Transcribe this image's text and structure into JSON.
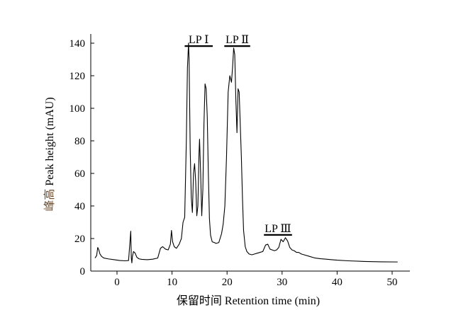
{
  "chart_data": {
    "type": "line",
    "xlabel": "保留时间 Retention time (min)",
    "ylabel": "峰高 Peak height (mAU)",
    "xlim": [
      -4,
      51.5
    ],
    "ylim": [
      0,
      142
    ],
    "x_ticks": [
      0,
      10,
      20,
      30,
      40,
      50
    ],
    "y_ticks": [
      0,
      20,
      40,
      60,
      80,
      100,
      120,
      140
    ],
    "grid": false,
    "legend": "none",
    "line_color": "#000000",
    "annotations": [
      {
        "label": "LP Ⅰ",
        "x_start": 12.3,
        "x_end": 17.4,
        "y": 143
      },
      {
        "label": "LP Ⅱ",
        "x_start": 19.5,
        "x_end": 24.2,
        "y": 143
      },
      {
        "label": "LP Ⅲ",
        "x_start": 26.7,
        "x_end": 31.8,
        "y": 27
      }
    ],
    "series": [
      {
        "x": [
          -4.0,
          -3.7,
          -3.5,
          -3.3,
          -3.1,
          -2.8,
          -2.4,
          -1.6,
          -0.5,
          0.5,
          1.5,
          2.1,
          2.5,
          2.6,
          2.7,
          2.8,
          3.0,
          3.3,
          3.6,
          4.0,
          4.5,
          5.5,
          6.5,
          7.4,
          7.9,
          8.3,
          8.8,
          9.3,
          9.7,
          9.9,
          10.1,
          10.4,
          10.8,
          11.3,
          11.7,
          12.0,
          12.3,
          12.6,
          12.8,
          13.0,
          13.1,
          13.3,
          13.5,
          13.7,
          13.9,
          14.1,
          14.3,
          14.5,
          14.7,
          14.9,
          15.0,
          15.2,
          15.4,
          15.6,
          15.8,
          16.0,
          16.2,
          16.4,
          16.6,
          16.8,
          17.0,
          17.3,
          17.7,
          18.0,
          18.5,
          19.0,
          19.3,
          19.6,
          19.9,
          20.2,
          20.5,
          20.8,
          21.0,
          21.2,
          21.4,
          21.6,
          21.8,
          22.0,
          22.2,
          22.4,
          22.6,
          22.8,
          23.0,
          23.3,
          23.6,
          24.0,
          24.5,
          25.0,
          25.5,
          26.0,
          26.5,
          27.0,
          27.4,
          27.8,
          28.2,
          28.6,
          29.0,
          29.4,
          29.8,
          30.2,
          30.6,
          31.0,
          31.4,
          31.8,
          32.2,
          32.6,
          33.0,
          33.5,
          34.0,
          35.0,
          36.0,
          37.0,
          38.0,
          39.0,
          40.0,
          42.0,
          45.0,
          48.0,
          51.0
        ],
        "y": [
          8.0,
          9.5,
          14.5,
          13.0,
          10.5,
          9.0,
          8.0,
          7.5,
          7.0,
          6.5,
          6.3,
          6.5,
          24.5,
          8.0,
          5.0,
          9.0,
          12.0,
          11.0,
          8.5,
          7.5,
          7.2,
          7.0,
          7.3,
          8.0,
          14.0,
          15.0,
          13.5,
          13.0,
          16.5,
          25.0,
          18.0,
          15.0,
          14.0,
          16.5,
          20.0,
          30.0,
          33.0,
          80.0,
          125.0,
          140.0,
          130.0,
          75.0,
          45.0,
          36.0,
          60.0,
          66.0,
          55.0,
          34.0,
          40.0,
          72.0,
          81.0,
          60.0,
          34.0,
          50.0,
          90.0,
          115.0,
          112.0,
          95.0,
          60.0,
          32.0,
          22.0,
          18.0,
          17.5,
          17.0,
          17.5,
          23.0,
          29.0,
          40.0,
          70.0,
          110.0,
          120.0,
          116.0,
          125.0,
          137.0,
          133.0,
          105.0,
          85.0,
          112.0,
          110.0,
          90.0,
          70.0,
          45.0,
          25.0,
          15.0,
          12.0,
          10.5,
          10.0,
          10.5,
          11.0,
          11.5,
          12.0,
          16.0,
          16.5,
          13.5,
          13.0,
          12.5,
          13.0,
          14.5,
          19.5,
          18.0,
          20.5,
          18.5,
          14.5,
          13.0,
          12.5,
          11.5,
          11.5,
          10.5,
          10.0,
          9.0,
          8.0,
          7.6,
          7.3,
          7.0,
          6.7,
          6.3,
          5.9,
          5.7,
          5.6
        ]
      }
    ]
  }
}
